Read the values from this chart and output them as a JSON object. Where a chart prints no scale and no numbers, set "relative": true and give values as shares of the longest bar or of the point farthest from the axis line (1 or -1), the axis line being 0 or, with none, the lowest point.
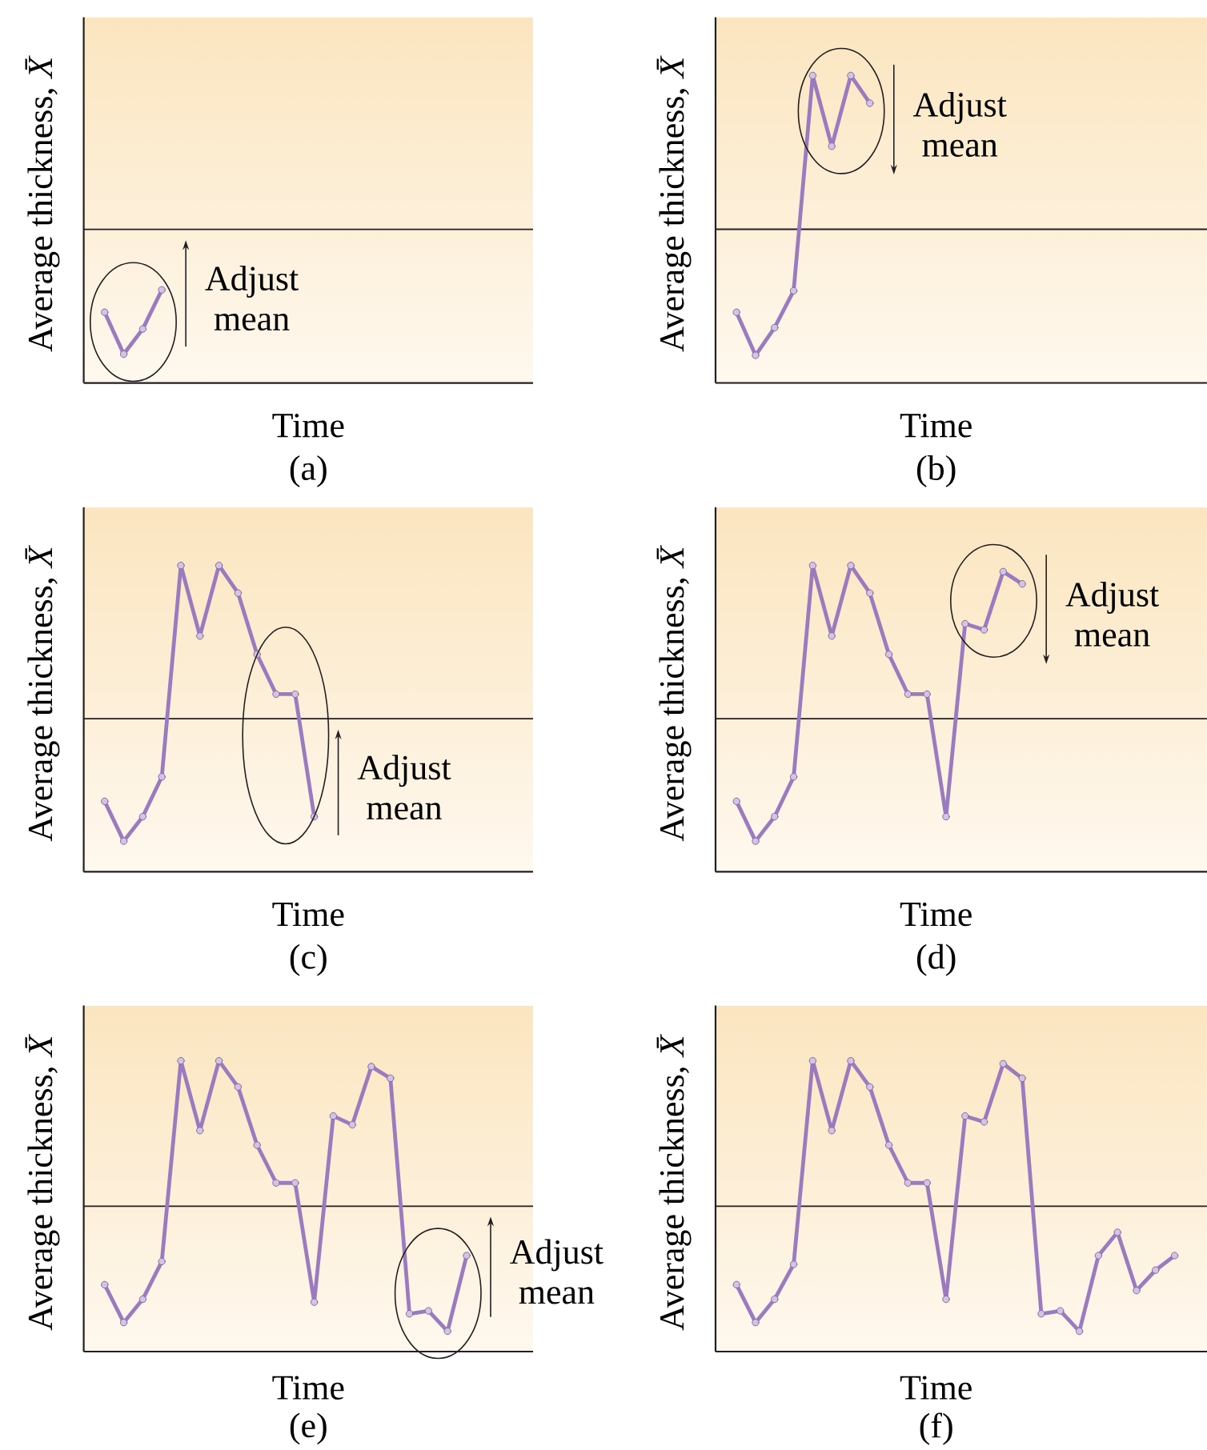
{
  "chart_data": [
    {
      "type": "line",
      "xlabel": "Time",
      "ylabel": "Average thickness, *X̄*",
      "relative": true,
      "color": "#9b7bbf",
      "marker": "circle",
      "categories": [
        null,
        null,
        null,
        null
      ],
      "values": [
        0.76,
        0.31,
        0.58,
        1.0
      ],
      "ref_lines": [
        {
          "axis": "y",
          "value": 1.65,
          "color": "#231f20"
        }
      ],
      "annotations": [
        "Adjust mean",
        "(a)"
      ]
    },
    {
      "type": "line",
      "xlabel": "Time",
      "ylabel": "Average thickness, *X̄*",
      "relative": true,
      "color": "#9b7bbf",
      "marker": "circle",
      "categories": [
        null,
        null,
        null,
        null,
        null,
        null,
        null,
        null
      ],
      "values": [
        0.23,
        0.09,
        0.18,
        0.3,
        1.0,
        0.77,
        1.0,
        0.91
      ],
      "ref_lines": [
        {
          "axis": "y",
          "value": 0.5,
          "color": "#231f20"
        }
      ],
      "annotations": [
        "Adjust mean",
        "(b)"
      ]
    },
    {
      "type": "line",
      "xlabel": "Time",
      "ylabel": "Average thickness, *X̄*",
      "relative": true,
      "color": "#9b7bbf",
      "marker": "circle",
      "categories": [
        null,
        null,
        null,
        null,
        null,
        null,
        null,
        null,
        null,
        null,
        null,
        null
      ],
      "values": [
        0.23,
        0.1,
        0.18,
        0.31,
        1.0,
        0.77,
        1.0,
        0.91,
        0.71,
        0.58,
        0.58,
        0.18
      ],
      "ref_lines": [
        {
          "axis": "y",
          "value": 0.5,
          "color": "#231f20"
        }
      ],
      "annotations": [
        "Adjust mean",
        "(c)"
      ]
    },
    {
      "type": "line",
      "xlabel": "Time",
      "ylabel": "Average thickness, *X̄*",
      "relative": true,
      "color": "#9b7bbf",
      "marker": "circle",
      "categories": [
        null,
        null,
        null,
        null,
        null,
        null,
        null,
        null,
        null,
        null,
        null,
        null,
        null,
        null,
        null,
        null
      ],
      "values": [
        0.23,
        0.1,
        0.18,
        0.31,
        1.0,
        0.77,
        1.0,
        0.91,
        0.71,
        0.58,
        0.58,
        0.18,
        0.81,
        0.79,
        0.98,
        0.94
      ],
      "ref_lines": [
        {
          "axis": "y",
          "value": 0.5,
          "color": "#231f20"
        }
      ],
      "annotations": [
        "Adjust mean",
        "(d)"
      ]
    },
    {
      "type": "line",
      "xlabel": "Time",
      "ylabel": "Average thickness, *X̄*",
      "relative": true,
      "color": "#9b7bbf",
      "marker": "circle",
      "categories": [
        null,
        null,
        null,
        null,
        null,
        null,
        null,
        null,
        null,
        null,
        null,
        null,
        null,
        null,
        null,
        null,
        null,
        null,
        null,
        null
      ],
      "values": [
        0.23,
        0.1,
        0.18,
        0.31,
        1.0,
        0.76,
        1.0,
        0.91,
        0.71,
        0.58,
        0.58,
        0.17,
        0.81,
        0.78,
        0.98,
        0.94,
        0.13,
        0.14,
        0.07,
        0.33
      ],
      "ref_lines": [
        {
          "axis": "y",
          "value": 0.5,
          "color": "#231f20"
        }
      ],
      "annotations": [
        "Adjust mean",
        "(e)"
      ]
    },
    {
      "type": "line",
      "xlabel": "Time",
      "ylabel": "Average thickness, *X̄*",
      "relative": true,
      "color": "#9b7bbf",
      "marker": "circle",
      "categories": [
        null,
        null,
        null,
        null,
        null,
        null,
        null,
        null,
        null,
        null,
        null,
        null,
        null,
        null,
        null,
        null,
        null,
        null,
        null,
        null,
        null,
        null,
        null,
        null
      ],
      "values": [
        0.23,
        0.1,
        0.18,
        0.3,
        1.0,
        0.76,
        1.0,
        0.91,
        0.71,
        0.58,
        0.58,
        0.18,
        0.81,
        0.79,
        0.99,
        0.94,
        0.13,
        0.14,
        0.07,
        0.33,
        0.41,
        0.21,
        0.28,
        0.33
      ],
      "ref_lines": [
        {
          "axis": "y",
          "value": 0.5,
          "color": "#231f20"
        }
      ],
      "annotations": [
        "(f)"
      ]
    }
  ]
}
